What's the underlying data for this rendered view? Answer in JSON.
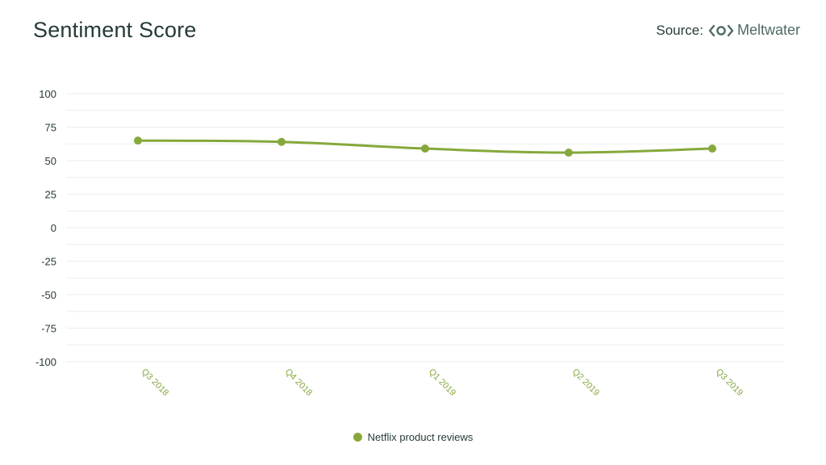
{
  "header": {
    "title": "Sentiment Score",
    "source_label": "Source:",
    "brand_name": "Meltwater",
    "brand_icon": "meltwater-logo-icon"
  },
  "colors": {
    "series": "#86a83c",
    "grid": "#ebeeee",
    "axis_text": "#27393a",
    "tick_x_text": "#86a83c"
  },
  "chart_data": {
    "type": "line",
    "title": "Sentiment Score",
    "xlabel": "",
    "ylabel": "",
    "categories": [
      "Q3 2018",
      "Q4 2018",
      "Q1 2019",
      "Q2 2019",
      "Q3 2019"
    ],
    "yticks": [
      100,
      75,
      50,
      25,
      0,
      -25,
      -50,
      -75,
      -100
    ],
    "ylim": [
      -100,
      100
    ],
    "grid": true,
    "legend_position": "bottom-center",
    "series": [
      {
        "name": "Netflix product reviews",
        "values": [
          65,
          64,
          59,
          56,
          59
        ]
      }
    ]
  }
}
